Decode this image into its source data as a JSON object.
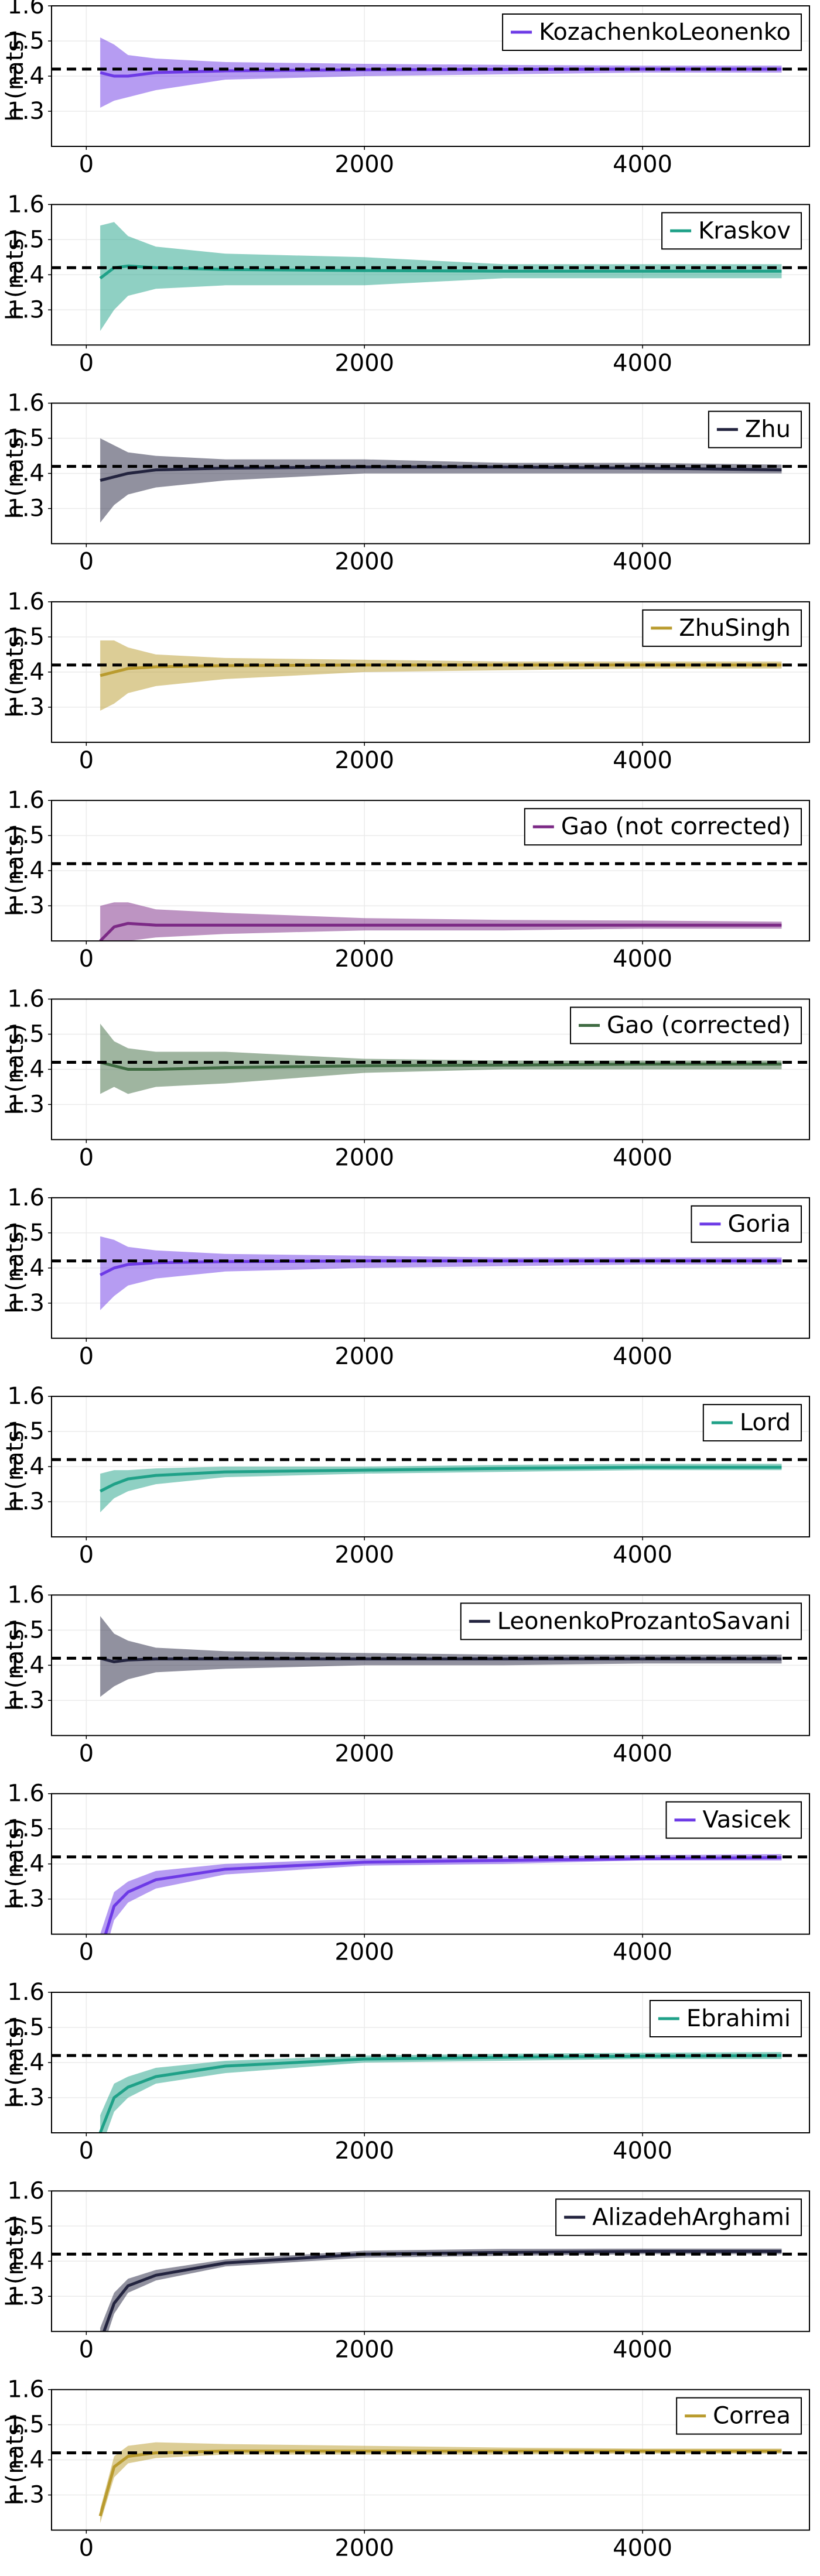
{
  "chart_data": [
    {
      "type": "area",
      "ylabel": "h (nats)",
      "xlim": [
        -250,
        5200
      ],
      "ylim": [
        1.2,
        1.6
      ],
      "xticks": [
        0,
        2000,
        4000
      ],
      "yticks": [
        1.3,
        1.4,
        1.5,
        1.6
      ],
      "xtick_labels": [
        "0",
        "2000",
        "4000"
      ],
      "ytick_labels": [
        "1.3",
        "1.4",
        "1.5",
        "1.6"
      ],
      "grid": true,
      "legend_position": "top-right",
      "reference_value": 1.42,
      "series": [
        {
          "name": "KozachenkoLeonenko",
          "color": "#6d3ae6",
          "x": [
            100,
            200,
            300,
            500,
            1000,
            2000,
            3000,
            4000,
            5000
          ],
          "mean": [
            1.41,
            1.4,
            1.4,
            1.41,
            1.415,
            1.418,
            1.419,
            1.42,
            1.42
          ],
          "lower": [
            1.31,
            1.33,
            1.34,
            1.36,
            1.39,
            1.4,
            1.405,
            1.41,
            1.41
          ],
          "upper": [
            1.51,
            1.49,
            1.46,
            1.45,
            1.44,
            1.435,
            1.432,
            1.43,
            1.43
          ]
        }
      ]
    },
    {
      "type": "area",
      "ylabel": "h (nats)",
      "xlim": [
        -250,
        5200
      ],
      "ylim": [
        1.2,
        1.6
      ],
      "xticks": [
        0,
        2000,
        4000
      ],
      "yticks": [
        1.3,
        1.4,
        1.5,
        1.6
      ],
      "xtick_labels": [
        "0",
        "2000",
        "4000"
      ],
      "ytick_labels": [
        "1.3",
        "1.4",
        "1.5",
        "1.6"
      ],
      "grid": true,
      "legend_position": "top-right",
      "reference_value": 1.42,
      "series": [
        {
          "name": "Kraskov",
          "color": "#1fa188",
          "x": [
            100,
            200,
            300,
            500,
            1000,
            2000,
            3000,
            4000,
            5000
          ],
          "mean": [
            1.39,
            1.42,
            1.425,
            1.42,
            1.415,
            1.412,
            1.41,
            1.41,
            1.41
          ],
          "lower": [
            1.24,
            1.3,
            1.34,
            1.36,
            1.37,
            1.37,
            1.39,
            1.39,
            1.39
          ],
          "upper": [
            1.54,
            1.55,
            1.51,
            1.48,
            1.46,
            1.45,
            1.43,
            1.43,
            1.43
          ]
        }
      ]
    },
    {
      "type": "area",
      "ylabel": "h (nats)",
      "xlim": [
        -250,
        5200
      ],
      "ylim": [
        1.2,
        1.6
      ],
      "xticks": [
        0,
        2000,
        4000
      ],
      "yticks": [
        1.3,
        1.4,
        1.5,
        1.6
      ],
      "xtick_labels": [
        "0",
        "2000",
        "4000"
      ],
      "ytick_labels": [
        "1.3",
        "1.4",
        "1.5",
        "1.6"
      ],
      "grid": true,
      "legend_position": "top-right",
      "reference_value": 1.42,
      "series": [
        {
          "name": "Zhu",
          "color": "#23243f",
          "x": [
            100,
            200,
            300,
            500,
            1000,
            2000,
            3000,
            4000,
            5000
          ],
          "mean": [
            1.38,
            1.39,
            1.4,
            1.41,
            1.415,
            1.418,
            1.418,
            1.415,
            1.41
          ],
          "lower": [
            1.26,
            1.31,
            1.34,
            1.36,
            1.38,
            1.4,
            1.4,
            1.4,
            1.4
          ],
          "upper": [
            1.5,
            1.48,
            1.46,
            1.45,
            1.44,
            1.44,
            1.43,
            1.43,
            1.425
          ]
        }
      ]
    },
    {
      "type": "area",
      "ylabel": "h (nats)",
      "xlim": [
        -250,
        5200
      ],
      "ylim": [
        1.2,
        1.6
      ],
      "xticks": [
        0,
        2000,
        4000
      ],
      "yticks": [
        1.3,
        1.4,
        1.5,
        1.6
      ],
      "xtick_labels": [
        "0",
        "2000",
        "4000"
      ],
      "ytick_labels": [
        "1.3",
        "1.4",
        "1.5",
        "1.6"
      ],
      "grid": true,
      "legend_position": "top-right",
      "reference_value": 1.42,
      "series": [
        {
          "name": "ZhuSingh",
          "color": "#b99b2e",
          "x": [
            100,
            200,
            300,
            500,
            1000,
            2000,
            3000,
            4000,
            5000
          ],
          "mean": [
            1.39,
            1.4,
            1.41,
            1.415,
            1.418,
            1.42,
            1.42,
            1.42,
            1.42
          ],
          "lower": [
            1.29,
            1.31,
            1.34,
            1.36,
            1.38,
            1.4,
            1.405,
            1.41,
            1.41
          ],
          "upper": [
            1.49,
            1.49,
            1.47,
            1.45,
            1.44,
            1.435,
            1.43,
            1.43,
            1.43
          ]
        }
      ]
    },
    {
      "type": "area",
      "ylabel": "h (nats)",
      "xlim": [
        -250,
        5200
      ],
      "ylim": [
        1.2,
        1.6
      ],
      "xticks": [
        0,
        2000,
        4000
      ],
      "yticks": [
        1.3,
        1.4,
        1.5,
        1.6
      ],
      "xtick_labels": [
        "0",
        "2000",
        "4000"
      ],
      "ytick_labels": [
        "1.3",
        "1.4",
        "1.5",
        "1.6"
      ],
      "grid": true,
      "legend_position": "top-right",
      "reference_value": 1.42,
      "series": [
        {
          "name": "Gao (not corrected)",
          "color": "#7c2a86",
          "x": [
            100,
            200,
            300,
            500,
            1000,
            2000,
            3000,
            4000,
            5000
          ],
          "mean": [
            1.2,
            1.24,
            1.25,
            1.245,
            1.245,
            1.245,
            1.245,
            1.245,
            1.245
          ],
          "lower": [
            1.18,
            1.19,
            1.2,
            1.21,
            1.22,
            1.23,
            1.23,
            1.235,
            1.235
          ],
          "upper": [
            1.3,
            1.31,
            1.31,
            1.29,
            1.28,
            1.265,
            1.26,
            1.258,
            1.255
          ]
        }
      ]
    },
    {
      "type": "area",
      "ylabel": "h (nats)",
      "xlim": [
        -250,
        5200
      ],
      "ylim": [
        1.2,
        1.6
      ],
      "xticks": [
        0,
        2000,
        4000
      ],
      "yticks": [
        1.3,
        1.4,
        1.5,
        1.6
      ],
      "xtick_labels": [
        "0",
        "2000",
        "4000"
      ],
      "ytick_labels": [
        "1.3",
        "1.4",
        "1.5",
        "1.6"
      ],
      "grid": true,
      "legend_position": "top-right",
      "reference_value": 1.42,
      "series": [
        {
          "name": "Gao (corrected)",
          "color": "#3f6b42",
          "x": [
            100,
            200,
            300,
            500,
            1000,
            2000,
            3000,
            4000,
            5000
          ],
          "mean": [
            1.42,
            1.41,
            1.4,
            1.4,
            1.405,
            1.41,
            1.412,
            1.415,
            1.415
          ],
          "lower": [
            1.33,
            1.35,
            1.33,
            1.35,
            1.36,
            1.39,
            1.4,
            1.4,
            1.4
          ],
          "upper": [
            1.53,
            1.48,
            1.46,
            1.45,
            1.45,
            1.43,
            1.425,
            1.425,
            1.425
          ]
        }
      ]
    },
    {
      "type": "area",
      "ylabel": "h (nats)",
      "xlim": [
        -250,
        5200
      ],
      "ylim": [
        1.2,
        1.6
      ],
      "xticks": [
        0,
        2000,
        4000
      ],
      "yticks": [
        1.3,
        1.4,
        1.5,
        1.6
      ],
      "xtick_labels": [
        "0",
        "2000",
        "4000"
      ],
      "ytick_labels": [
        "1.3",
        "1.4",
        "1.5",
        "1.6"
      ],
      "grid": true,
      "legend_position": "top-right",
      "reference_value": 1.42,
      "series": [
        {
          "name": "Goria",
          "color": "#6d3ae6",
          "x": [
            100,
            200,
            300,
            500,
            1000,
            2000,
            3000,
            4000,
            5000
          ],
          "mean": [
            1.38,
            1.4,
            1.41,
            1.415,
            1.418,
            1.42,
            1.42,
            1.42,
            1.42
          ],
          "lower": [
            1.28,
            1.32,
            1.35,
            1.37,
            1.39,
            1.4,
            1.405,
            1.41,
            1.41
          ],
          "upper": [
            1.49,
            1.48,
            1.46,
            1.45,
            1.44,
            1.435,
            1.43,
            1.43,
            1.43
          ]
        }
      ]
    },
    {
      "type": "area",
      "ylabel": "h (nats)",
      "xlim": [
        -250,
        5200
      ],
      "ylim": [
        1.2,
        1.6
      ],
      "xticks": [
        0,
        2000,
        4000
      ],
      "yticks": [
        1.3,
        1.4,
        1.5,
        1.6
      ],
      "xtick_labels": [
        "0",
        "2000",
        "4000"
      ],
      "ytick_labels": [
        "1.3",
        "1.4",
        "1.5",
        "1.6"
      ],
      "grid": true,
      "legend_position": "top-right",
      "reference_value": 1.42,
      "series": [
        {
          "name": "Lord",
          "color": "#1fa188",
          "x": [
            100,
            200,
            300,
            500,
            1000,
            2000,
            3000,
            4000,
            5000
          ],
          "mean": [
            1.33,
            1.35,
            1.365,
            1.375,
            1.385,
            1.39,
            1.395,
            1.398,
            1.398
          ],
          "lower": [
            1.27,
            1.31,
            1.33,
            1.35,
            1.37,
            1.38,
            1.385,
            1.39,
            1.39
          ],
          "upper": [
            1.38,
            1.39,
            1.39,
            1.395,
            1.4,
            1.4,
            1.405,
            1.408,
            1.408
          ]
        }
      ]
    },
    {
      "type": "area",
      "ylabel": "h (nats)",
      "xlim": [
        -250,
        5200
      ],
      "ylim": [
        1.2,
        1.6
      ],
      "xticks": [
        0,
        2000,
        4000
      ],
      "yticks": [
        1.3,
        1.4,
        1.5,
        1.6
      ],
      "xtick_labels": [
        "0",
        "2000",
        "4000"
      ],
      "ytick_labels": [
        "1.3",
        "1.4",
        "1.5",
        "1.6"
      ],
      "grid": true,
      "legend_position": "top-right",
      "reference_value": 1.42,
      "series": [
        {
          "name": "LeonenkoProzantoSavani",
          "color": "#23243f",
          "x": [
            100,
            200,
            300,
            500,
            1000,
            2000,
            3000,
            4000,
            5000
          ],
          "mean": [
            1.42,
            1.41,
            1.415,
            1.418,
            1.418,
            1.418,
            1.418,
            1.418,
            1.418
          ],
          "lower": [
            1.31,
            1.34,
            1.36,
            1.38,
            1.39,
            1.4,
            1.4,
            1.405,
            1.405
          ],
          "upper": [
            1.54,
            1.49,
            1.47,
            1.45,
            1.44,
            1.435,
            1.43,
            1.43,
            1.43
          ]
        }
      ]
    },
    {
      "type": "area",
      "ylabel": "h (nats)",
      "xlim": [
        -250,
        5200
      ],
      "ylim": [
        1.2,
        1.6
      ],
      "xticks": [
        0,
        2000,
        4000
      ],
      "yticks": [
        1.3,
        1.4,
        1.5,
        1.6
      ],
      "xtick_labels": [
        "0",
        "2000",
        "4000"
      ],
      "ytick_labels": [
        "1.3",
        "1.4",
        "1.5",
        "1.6"
      ],
      "grid": true,
      "legend_position": "top-right",
      "reference_value": 1.42,
      "series": [
        {
          "name": "Vasicek",
          "color": "#6d3ae6",
          "x": [
            100,
            200,
            300,
            500,
            1000,
            2000,
            3000,
            4000,
            5000
          ],
          "mean": [
            1.15,
            1.28,
            1.32,
            1.355,
            1.385,
            1.405,
            1.41,
            1.415,
            1.418
          ],
          "lower": [
            1.1,
            1.24,
            1.29,
            1.33,
            1.37,
            1.395,
            1.4,
            1.41,
            1.41
          ],
          "upper": [
            1.2,
            1.32,
            1.35,
            1.38,
            1.4,
            1.415,
            1.42,
            1.425,
            1.428
          ]
        }
      ]
    },
    {
      "type": "area",
      "ylabel": "h (nats)",
      "xlim": [
        -250,
        5200
      ],
      "ylim": [
        1.2,
        1.6
      ],
      "xticks": [
        0,
        2000,
        4000
      ],
      "yticks": [
        1.3,
        1.4,
        1.5,
        1.6
      ],
      "xtick_labels": [
        "0",
        "2000",
        "4000"
      ],
      "ytick_labels": [
        "1.3",
        "1.4",
        "1.5",
        "1.6"
      ],
      "grid": true,
      "legend_position": "top-right",
      "reference_value": 1.42,
      "series": [
        {
          "name": "Ebrahimi",
          "color": "#1fa188",
          "x": [
            100,
            200,
            300,
            500,
            1000,
            2000,
            3000,
            4000,
            5000
          ],
          "mean": [
            1.2,
            1.3,
            1.33,
            1.36,
            1.39,
            1.41,
            1.415,
            1.418,
            1.42
          ],
          "lower": [
            1.15,
            1.26,
            1.3,
            1.34,
            1.37,
            1.4,
            1.405,
            1.41,
            1.41
          ],
          "upper": [
            1.25,
            1.34,
            1.36,
            1.385,
            1.405,
            1.42,
            1.425,
            1.428,
            1.43
          ]
        }
      ]
    },
    {
      "type": "area",
      "ylabel": "h (nats)",
      "xlim": [
        -250,
        5200
      ],
      "ylim": [
        1.2,
        1.6
      ],
      "xticks": [
        0,
        2000,
        4000
      ],
      "yticks": [
        1.3,
        1.4,
        1.5,
        1.6
      ],
      "xtick_labels": [
        "0",
        "2000",
        "4000"
      ],
      "ytick_labels": [
        "1.3",
        "1.4",
        "1.5",
        "1.6"
      ],
      "grid": true,
      "legend_position": "top-right",
      "reference_value": 1.42,
      "series": [
        {
          "name": "AlizadehArghami",
          "color": "#23243f",
          "x": [
            100,
            200,
            300,
            500,
            1000,
            2000,
            3000,
            4000,
            5000
          ],
          "mean": [
            1.17,
            1.28,
            1.33,
            1.36,
            1.395,
            1.42,
            1.425,
            1.428,
            1.428
          ],
          "lower": [
            1.13,
            1.25,
            1.31,
            1.345,
            1.385,
            1.41,
            1.415,
            1.42,
            1.42
          ],
          "upper": [
            1.21,
            1.31,
            1.35,
            1.375,
            1.405,
            1.43,
            1.435,
            1.436,
            1.436
          ]
        }
      ]
    },
    {
      "type": "area",
      "ylabel": "h (nats)",
      "xlim": [
        -250,
        5200
      ],
      "ylim": [
        1.2,
        1.6
      ],
      "xticks": [
        0,
        2000,
        4000
      ],
      "yticks": [
        1.3,
        1.4,
        1.5,
        1.6
      ],
      "xtick_labels": [
        "0",
        "2000",
        "4000"
      ],
      "ytick_labels": [
        "1.3",
        "1.4",
        "1.5",
        "1.6"
      ],
      "grid": true,
      "legend_position": "top-right",
      "reference_value": 1.42,
      "series": [
        {
          "name": "Correa",
          "color": "#b99b2e",
          "x": [
            100,
            200,
            300,
            500,
            1000,
            2000,
            3000,
            4000,
            5000
          ],
          "mean": [
            1.24,
            1.38,
            1.41,
            1.42,
            1.425,
            1.425,
            1.425,
            1.425,
            1.425
          ],
          "lower": [
            1.22,
            1.35,
            1.39,
            1.405,
            1.415,
            1.415,
            1.415,
            1.418,
            1.418
          ],
          "upper": [
            1.26,
            1.41,
            1.44,
            1.45,
            1.445,
            1.44,
            1.435,
            1.432,
            1.432
          ]
        }
      ]
    }
  ]
}
